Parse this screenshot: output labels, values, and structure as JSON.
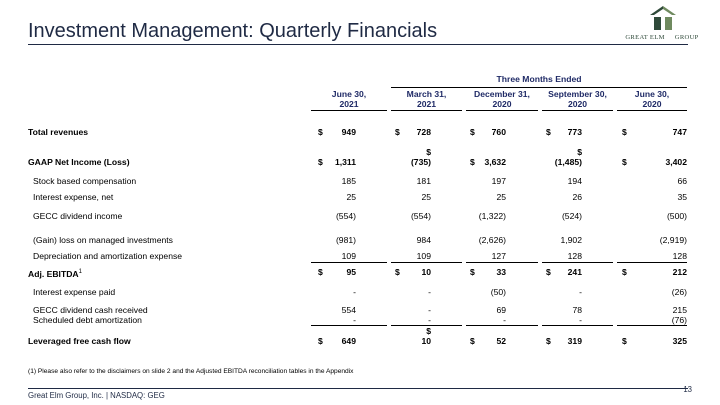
{
  "slide": {
    "title": "Investment Management: Quarterly Financials",
    "logo_text_left": "GREAT ELM",
    "logo_text_right": "GROUP",
    "band_label": "Three Months Ended",
    "columns": [
      {
        "line1": "June 30,",
        "line2": "2021"
      },
      {
        "line1": "March 31,",
        "line2": "2021"
      },
      {
        "line1": "December 31,",
        "line2": "2020"
      },
      {
        "line1": "September 30,",
        "line2": "2020"
      },
      {
        "line1": "June 30,",
        "line2": "2020"
      }
    ],
    "rows": [
      {
        "label": "Total revenues",
        "bold": true,
        "dollar": [
          true,
          true,
          true,
          true,
          true
        ],
        "values": [
          "949",
          "728",
          "760",
          "773",
          "747"
        ]
      },
      {
        "label": "GAAP Net Income (Loss)",
        "bold": true,
        "dollar": [
          true,
          false,
          true,
          false,
          true
        ],
        "values": [
          "1,311",
          "(735)",
          "3,632",
          "(1,485)",
          "3,402"
        ],
        "stacked_dollar": [
          false,
          true,
          false,
          true,
          false
        ]
      },
      {
        "label": "Stock based compensation",
        "bold": false,
        "values": [
          "185",
          "181",
          "197",
          "194",
          "66"
        ]
      },
      {
        "label": "Interest expense, net",
        "bold": false,
        "values": [
          "25",
          "25",
          "25",
          "26",
          "35"
        ]
      },
      {
        "label": "GECC dividend income",
        "bold": false,
        "values": [
          "(554)",
          "(554)",
          "(1,322)",
          "(524)",
          "(500)"
        ]
      },
      {
        "label": "(Gain) loss on managed investments",
        "bold": false,
        "values": [
          "(981)",
          "984",
          "(2,626)",
          "1,902",
          "(2,919)"
        ]
      },
      {
        "label": "Depreciation and amortization expense",
        "bold": false,
        "values": [
          "109",
          "109",
          "127",
          "128",
          "128"
        ]
      },
      {
        "label": "Adj. EBITDA",
        "label_sup": "1",
        "bold": true,
        "dollar": [
          true,
          true,
          true,
          true,
          true
        ],
        "values": [
          "95",
          "10",
          "33",
          "241",
          "212"
        ]
      },
      {
        "label": "Interest expense paid",
        "bold": false,
        "values": [
          "-",
          "-",
          "(50)",
          "-",
          "(26)"
        ]
      },
      {
        "label": "GECC dividend cash received",
        "bold": false,
        "values": [
          "554",
          "-",
          "69",
          "78",
          "215"
        ]
      },
      {
        "label": "Scheduled debt amortization",
        "bold": false,
        "values": [
          "-",
          "-",
          "-",
          "-",
          "(76)"
        ]
      },
      {
        "label": "Leveraged free cash flow",
        "bold": true,
        "dollar": [
          true,
          false,
          true,
          true,
          true
        ],
        "values": [
          "649",
          "10",
          "52",
          "319",
          "325"
        ],
        "stacked_dollar": [
          false,
          true,
          false,
          false,
          false
        ]
      }
    ],
    "dollar_sign": "$",
    "footnote": "(1) Please also refer to the disclaimers on slide 2 and the Adjusted EBITDA reconciliation tables in the Appendix",
    "footer": "Great Elm Group, Inc. | NASDAQ: GEG",
    "page_number": "13"
  }
}
